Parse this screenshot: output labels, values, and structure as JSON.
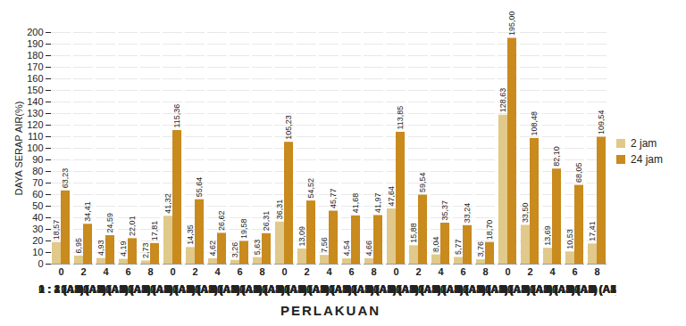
{
  "chart_data": {
    "type": "bar",
    "y_label": "DAYA SERAP AIR(%)",
    "x_label": "PERLAKUAN",
    "categories": [
      "0",
      "2",
      "4",
      "6",
      "8",
      "0",
      "2",
      "4",
      "6",
      "8",
      "0",
      "2",
      "4",
      "6",
      "8",
      "0",
      "2",
      "4",
      "6",
      "8",
      "0",
      "2",
      "4",
      "6",
      "8"
    ],
    "group_labels": [
      "1 : 1 (A1)",
      "1 : 2 (A2)",
      "1 : 3 (A3)",
      "1 : 4 (A4)",
      "0 : 1 (A5)"
    ],
    "series": [
      {
        "name": "2 jam",
        "color": "#e0c98a",
        "values": [
          18.57,
          6.95,
          4.93,
          4.19,
          2.73,
          41.32,
          14.35,
          4.62,
          3.26,
          5.63,
          36.31,
          13.09,
          7.56,
          4.54,
          4.66,
          47.64,
          15.88,
          8.04,
          5.77,
          3.76,
          128.63,
          33.5,
          13.69,
          10.53,
          17.41
        ],
        "value_labels": [
          "18,57",
          "6,95",
          "4,93",
          "4,19",
          "2,73",
          "41,32",
          "14,35",
          "4,62",
          "3,26",
          "5,63",
          "36,31",
          "13,09",
          "7,56",
          "4,54",
          "4,66",
          "47,64",
          "15,88",
          "8,04",
          "5,77",
          "3,76",
          "128,63",
          "33,50",
          "13,69",
          "10,53",
          "17,41"
        ]
      },
      {
        "name": "24 jam",
        "color": "#c98a1e",
        "values": [
          63.23,
          34.41,
          24.59,
          22.01,
          17.81,
          115.36,
          55.64,
          26.62,
          19.58,
          26.31,
          105.23,
          54.52,
          45.77,
          41.68,
          41.97,
          113.85,
          59.54,
          35.37,
          33.24,
          18.7,
          195.0,
          108.48,
          82.1,
          68.05,
          109.54
        ],
        "value_labels": [
          "63,23",
          "34,41",
          "24,59",
          "22,01",
          "17,81",
          "115,36",
          "55,64",
          "26,62",
          "19,58",
          "26,31",
          "105,23",
          "54,52",
          "45,77",
          "41,68",
          "41,97",
          "113,85",
          "59,54",
          "35,37",
          "33,24",
          "18,70",
          "195,00",
          "108,48",
          "82,10",
          "68,05",
          "109,54"
        ]
      }
    ],
    "ylim": [
      0,
      200
    ],
    "yticks": [
      0,
      10,
      20,
      30,
      40,
      50,
      60,
      70,
      80,
      90,
      100,
      110,
      120,
      130,
      140,
      150,
      160,
      170,
      180,
      190,
      200
    ],
    "grid": true,
    "legend": "right",
    "data_labels": true
  }
}
